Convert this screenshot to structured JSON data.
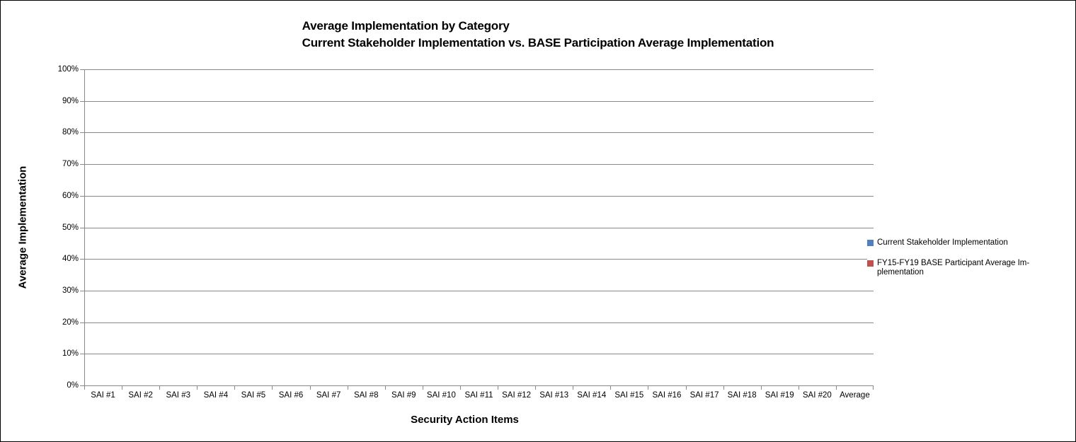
{
  "frame": {
    "background": "#ffffff",
    "border_color": "#000000"
  },
  "title": {
    "line1": "Average Implementation by Category",
    "line2": "Current Stakeholder Implementation vs. BASE Participation Average Implementation"
  },
  "axes": {
    "y_title": "Average Implementation",
    "x_title": "Security Action Items"
  },
  "legend": {
    "position": "right",
    "items": [
      {
        "color": "#4F81BD",
        "label_lines": [
          "Current Stakeholder Implementation"
        ]
      },
      {
        "color": "#C0504D",
        "label_lines": [
          "FY15-FY19 BASE Participant Average Im-",
          "plementation"
        ]
      }
    ]
  },
  "colors": {
    "gridline": "#898989",
    "axis_line": "#898989",
    "series_blue": "#4F81BD",
    "series_red": "#C0504D",
    "text": "#000000"
  },
  "chart_data": {
    "type": "bar",
    "title": "Average Implementation by Category\nCurrent Stakeholder Implementation vs. BASE Participation Average Implementation",
    "xlabel": "Security Action Items",
    "ylabel": "Average Implementation",
    "ylim": [
      0,
      100
    ],
    "ytick_labels": [
      "0%",
      "10%",
      "20%",
      "30%",
      "40%",
      "50%",
      "60%",
      "70%",
      "80%",
      "90%",
      "100%"
    ],
    "grid": true,
    "legend_position": "right",
    "categories": [
      "SAI #1",
      "SAI #2",
      "SAI #3",
      "SAI #4",
      "SAI #5",
      "SAI #6",
      "SAI #7",
      "SAI #8",
      "SAI #9",
      "SAI #10",
      "SAI #11",
      "SAI #12",
      "SAI #13",
      "SAI #14",
      "SAI #15",
      "SAI #16",
      "SAI #17",
      "SAI #18",
      "SAI #19",
      "SAI #20",
      "Average"
    ],
    "series": [
      {
        "name": "Current Stakeholder Implementation",
        "color": "#4F81BD",
        "values": [
          0,
          0,
          0,
          0,
          0,
          0,
          0,
          0,
          0,
          0,
          0,
          0,
          0,
          0,
          0,
          0,
          0,
          0,
          0,
          0,
          0
        ]
      },
      {
        "name": "FY15-FY19 BASE Participant Average Implementation",
        "color": "#C0504D",
        "values": [
          0,
          0,
          0,
          0,
          0,
          0,
          0,
          0,
          0,
          0,
          0,
          0,
          0,
          0,
          0,
          0,
          0,
          0,
          0,
          0,
          0
        ]
      }
    ]
  }
}
